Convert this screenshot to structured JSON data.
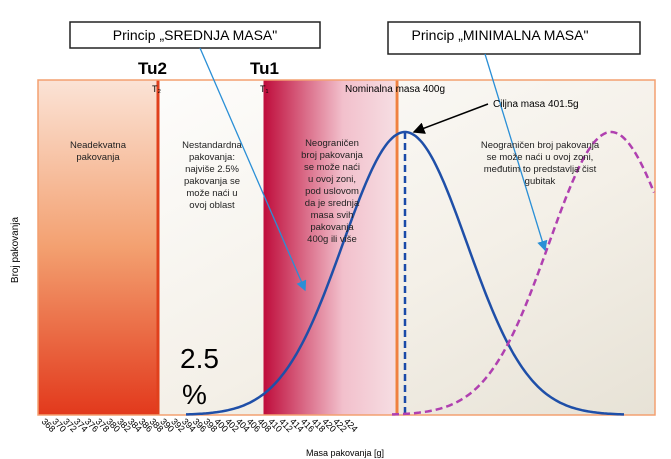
{
  "callouts": [
    "Princip „SREDNJA MASA\"",
    "Princip „MINIMALNA MASA\""
  ],
  "labels": {
    "tu2": "Tu2",
    "tu1": "Tu1",
    "t2": "T₂",
    "t1": "T₁",
    "nominal": "Nominalna masa 400g",
    "target": "Ciljna masa 401.5g"
  },
  "zones": [
    [
      "Neadekvatna",
      "pakovanja"
    ],
    [
      "Nestandardna",
      "pakovanja:",
      "najviše 2.5%",
      "pakovanja se",
      "može naći u",
      "ovoj oblast"
    ],
    [
      "Neograničen",
      "broj pakovanja",
      "se može naći",
      "u ovoj zoni,",
      "pod uslovom",
      "da je srednja",
      "masa svih",
      "pakovanja",
      "400g ili više"
    ],
    [
      "Neograničen broj pakovanja",
      "se može naći u ovoj zoni,",
      "međutim to predstavlja čist",
      "gubitak"
    ]
  ],
  "percent": [
    "2.5",
    "%"
  ],
  "axis": {
    "y_label": "Broj pakovanja",
    "x_label": "Masa pakovanja [g]",
    "x_ticks": [
      368,
      370,
      372,
      374,
      376,
      378,
      380,
      382,
      384,
      386,
      388,
      390,
      392,
      394,
      396,
      398,
      400,
      402,
      404,
      406,
      408,
      410,
      412,
      414,
      416,
      418,
      420,
      422,
      424
    ]
  }
}
